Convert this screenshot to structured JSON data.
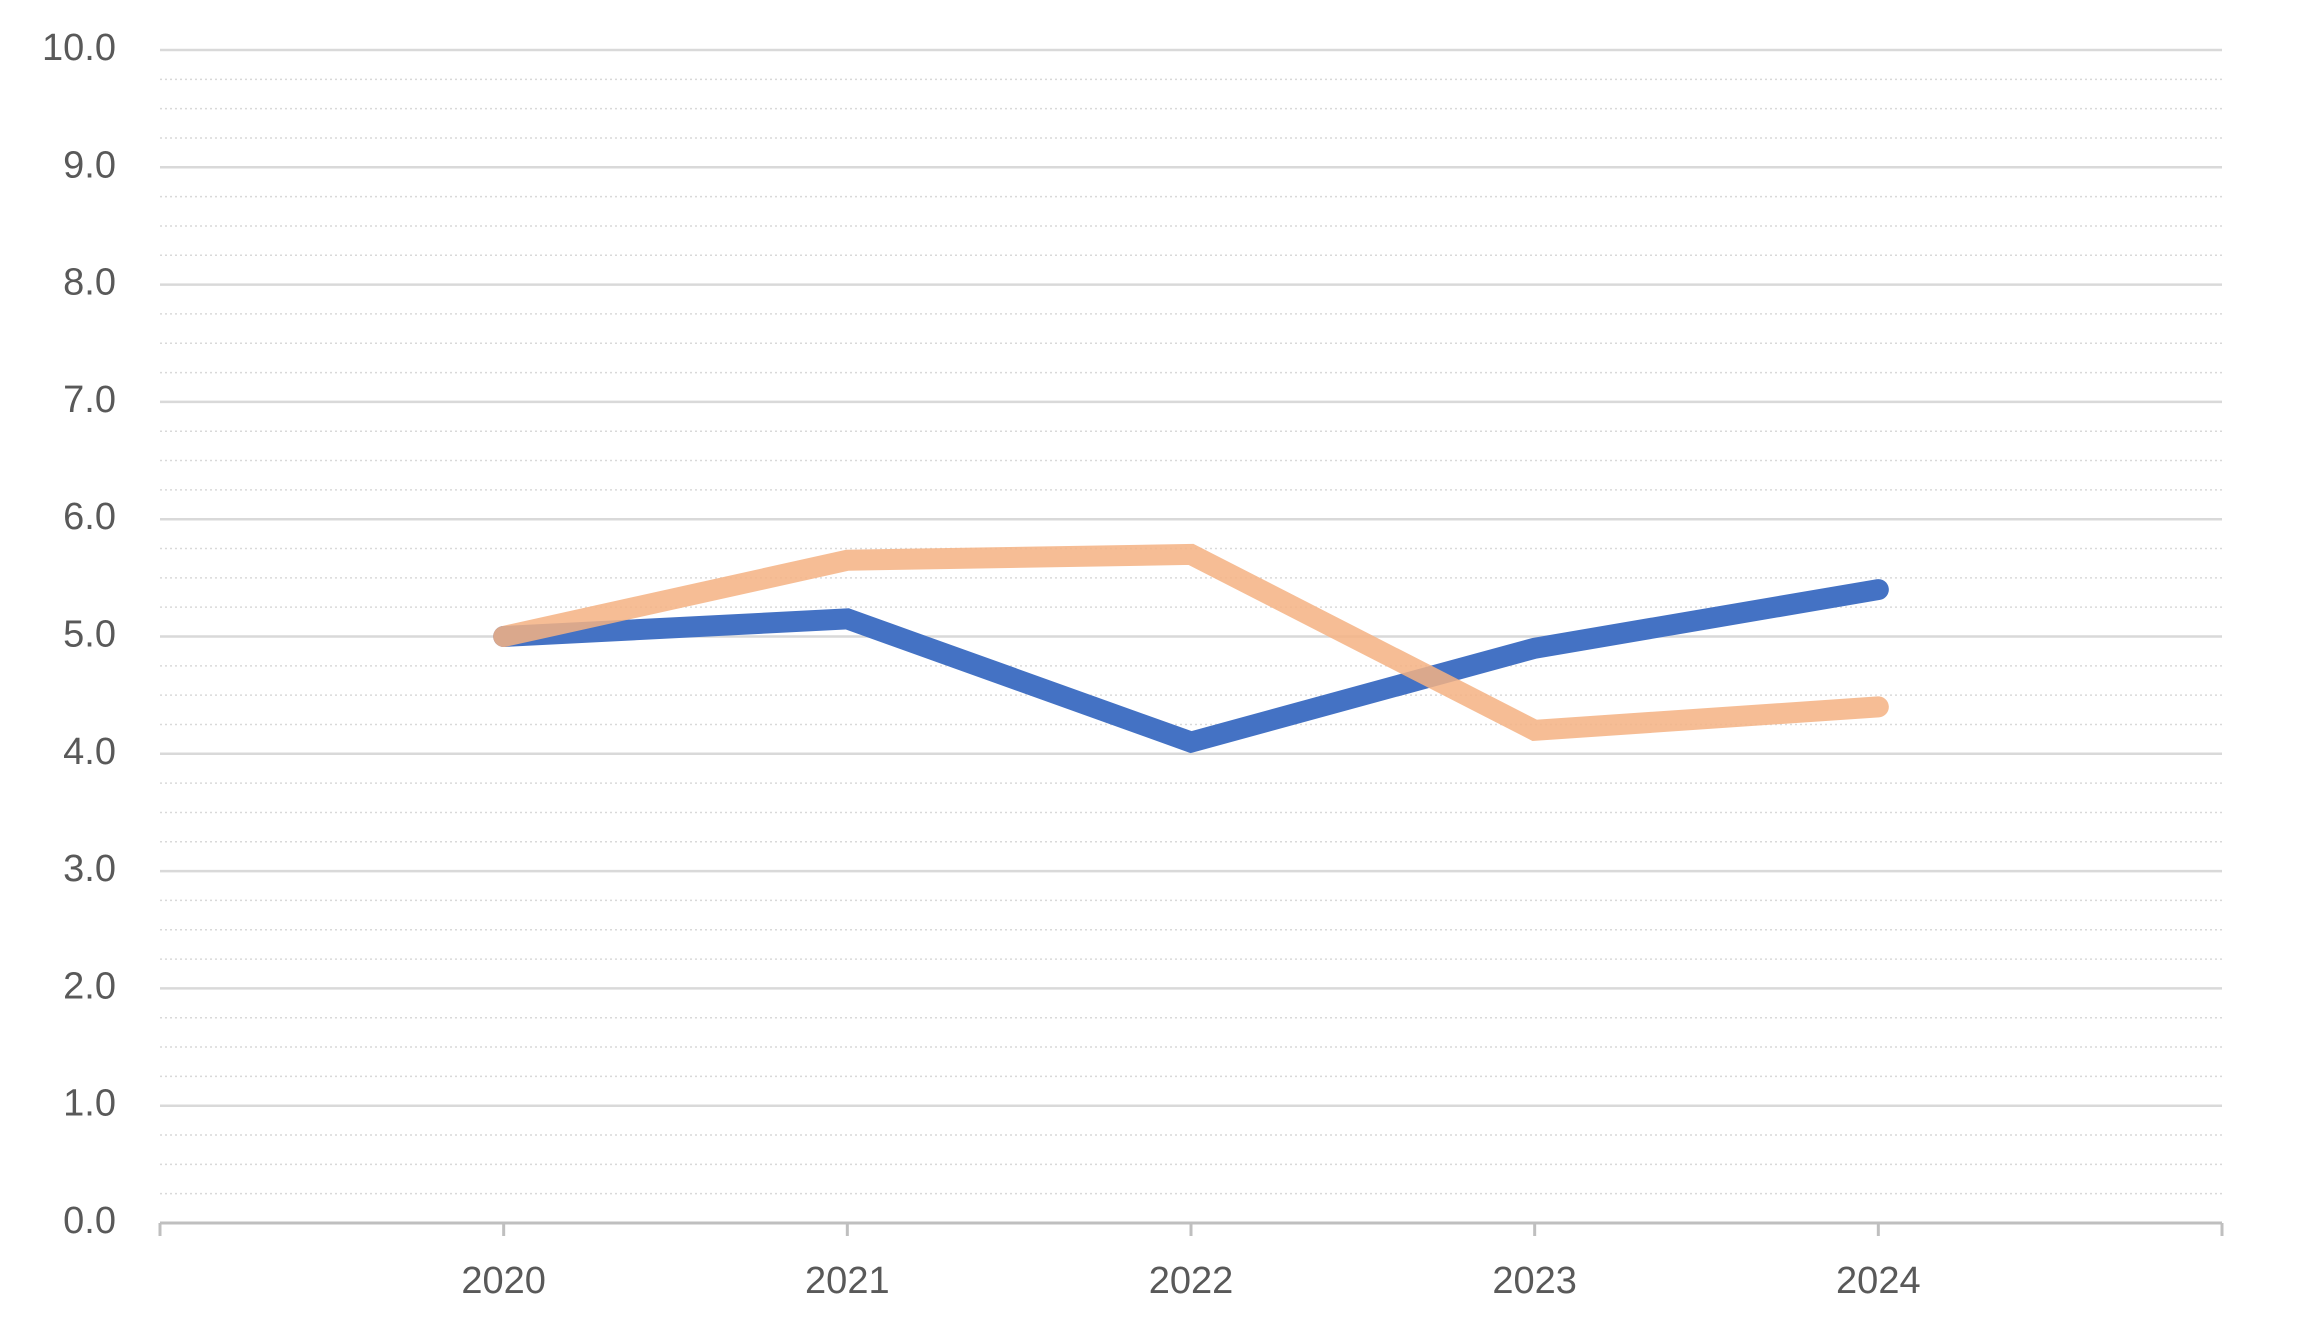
{
  "chart_data": {
    "type": "line",
    "categories": [
      null,
      "2020",
      "2021",
      "2022",
      "2023",
      "2024",
      null
    ],
    "series": [
      {
        "color": "#4472c4",
        "values": [
          null,
          5.0,
          5.15,
          4.1,
          4.9,
          5.4,
          null
        ]
      },
      {
        "color": "#f4b183",
        "values": [
          null,
          5.0,
          5.65,
          5.7,
          4.2,
          4.4,
          null
        ]
      }
    ],
    "ylim": [
      0,
      10
    ],
    "yticks": [
      {
        "value": 0,
        "label": "0.0"
      },
      {
        "value": 1,
        "label": "1.0"
      },
      {
        "value": 2,
        "label": "2.0"
      },
      {
        "value": 3,
        "label": "3.0"
      },
      {
        "value": 4,
        "label": "4.0"
      },
      {
        "value": 5,
        "label": "5.0"
      },
      {
        "value": 6,
        "label": "6.0"
      },
      {
        "value": 7,
        "label": "7.0"
      },
      {
        "value": 8,
        "label": "8.0"
      },
      {
        "value": 9,
        "label": "9.0"
      },
      {
        "value": 10,
        "label": "10.0"
      }
    ],
    "grid": true,
    "minor_grid_divisions": 4
  }
}
